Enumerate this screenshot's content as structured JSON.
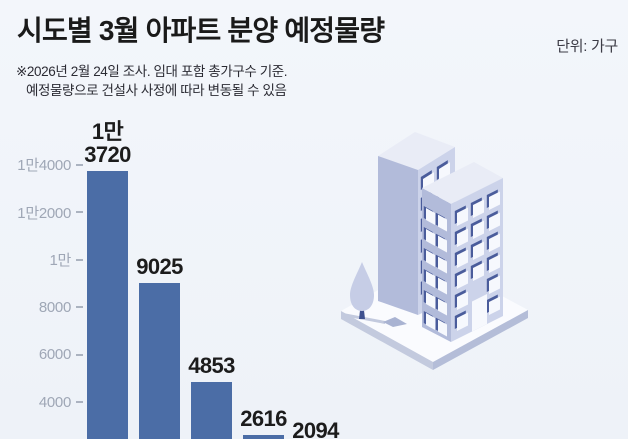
{
  "header": {
    "title": "시도별 3월 아파트 분양 예정물량",
    "unit_label": "단위: 가구",
    "note_lines": [
      "※2026년 2월 24일 조사. 임대 포함 총가구수 기준.",
      "예정물량으로 건설사 사정에 따라 변동될 수 있음"
    ]
  },
  "chart_data": {
    "type": "bar",
    "title": "시도별 3월 아파트 분양 예정물량",
    "unit": "가구",
    "values": [
      13720,
      9025,
      4853,
      2616,
      2094
    ],
    "bar_value_labels": [
      [
        "1만",
        "3720"
      ],
      [
        "9025"
      ],
      [
        "4853"
      ],
      [
        "2616"
      ],
      [
        "2094"
      ]
    ],
    "categories_visible": false,
    "y_axis": {
      "ticks": [
        {
          "value": 14000,
          "label": "1만4000"
        },
        {
          "value": 12000,
          "label": "1만2000"
        },
        {
          "value": 10000,
          "label": "1만"
        },
        {
          "value": 8000,
          "label": "8000"
        },
        {
          "value": 6000,
          "label": "6000"
        },
        {
          "value": 4000,
          "label": "4000"
        }
      ],
      "range_visible": [
        2000,
        14000
      ]
    },
    "grid": false,
    "legend": false,
    "bar_color": "#4b6da6",
    "layout_hint": "bars descend left-to-right; chart baseline and category labels are cropped below the image edge"
  },
  "illustration": {
    "name": "isometric-apartment-buildings",
    "colors": {
      "wall_left": "#b2bbda",
      "wall_right": "#ccd3ea",
      "roof": "#e9ecf6",
      "window_frame": "#4a5c9b",
      "window": "#f6f8fd",
      "platform_top": "#fafbfe",
      "platform_edge_left": "#c3cade",
      "platform_edge_right": "#b4bdd8",
      "path_shadow": "#a9b3d2",
      "tree": "#c6cde6",
      "trunk": "#3f518f"
    }
  },
  "colors": {
    "background_top": "#f3f6fb",
    "background_bottom": "#eef2f8",
    "title_text": "#1a1a1a",
    "note_text": "#2b2b33",
    "axis_text": "#9fa7b6",
    "value_text": "#1c1c1c"
  }
}
